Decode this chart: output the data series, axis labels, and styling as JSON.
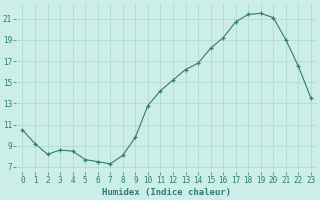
{
  "x": [
    0,
    1,
    2,
    3,
    4,
    5,
    6,
    7,
    8,
    9,
    10,
    11,
    12,
    13,
    14,
    15,
    16,
    17,
    18,
    19,
    20,
    21,
    22,
    23
  ],
  "y": [
    10.5,
    9.2,
    8.2,
    8.6,
    8.5,
    7.7,
    7.5,
    7.3,
    8.1,
    9.8,
    12.8,
    14.2,
    15.2,
    16.2,
    16.8,
    18.2,
    19.2,
    20.7,
    21.4,
    21.5,
    21.1,
    19.0,
    16.5,
    13.5
  ],
  "xlabel": "Humidex (Indice chaleur)",
  "bg_color": "#cceee8",
  "line_color": "#2e7d6e",
  "grid_color": "#b0d8cc",
  "xlim": [
    -0.5,
    23.5
  ],
  "ylim": [
    6.5,
    22.5
  ],
  "xticks": [
    0,
    1,
    2,
    3,
    4,
    5,
    6,
    7,
    8,
    9,
    10,
    11,
    12,
    13,
    14,
    15,
    16,
    17,
    18,
    19,
    20,
    21,
    22,
    23
  ],
  "yticks": [
    7,
    9,
    11,
    13,
    15,
    17,
    19,
    21
  ],
  "tick_fontsize": 5.5,
  "label_fontsize": 6.5
}
